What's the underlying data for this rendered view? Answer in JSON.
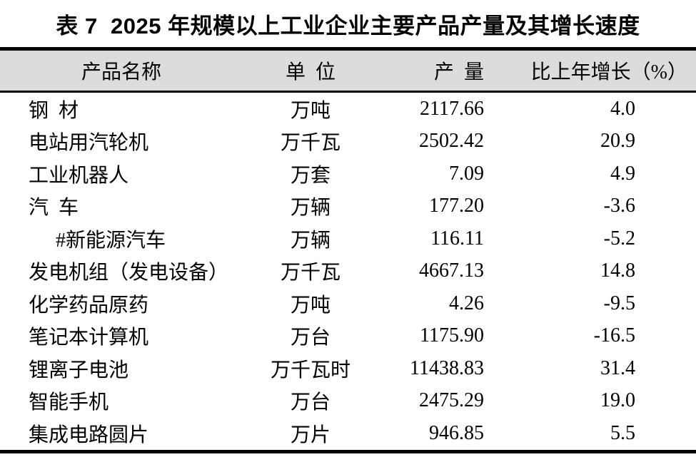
{
  "title": "表 7  2025 年规模以上工业企业主要产品产量及其增长速度",
  "table": {
    "columns": {
      "product": "产品名称",
      "unit": "单  位",
      "output": "产  量",
      "growth": "比上年增长（%）"
    },
    "rows": [
      {
        "product": "钢  材",
        "unit": "万吨",
        "output": "2117.66",
        "growth": "4.0"
      },
      {
        "product": "电站用汽轮机",
        "unit": "万千瓦",
        "output": "2502.42",
        "growth": "20.9"
      },
      {
        "product": "工业机器人",
        "unit": "万套",
        "output": "7.09",
        "growth": "4.9"
      },
      {
        "product": "汽  车",
        "unit": "万辆",
        "output": "177.20",
        "growth": "-3.6"
      },
      {
        "product": "#新能源汽车",
        "unit": "万辆",
        "output": "116.11",
        "growth": "-5.2"
      },
      {
        "product": "发电机组（发电设备）",
        "unit": "万千瓦",
        "output": "4667.13",
        "growth": "14.8"
      },
      {
        "product": "化学药品原药",
        "unit": "万吨",
        "output": "4.26",
        "growth": "-9.5"
      },
      {
        "product": "笔记本计算机",
        "unit": "万台",
        "output": "1175.90",
        "growth": "-16.5"
      },
      {
        "product": "锂离子电池",
        "unit": "万千瓦时",
        "output": "11438.83",
        "growth": "31.4"
      },
      {
        "product": "智能手机",
        "unit": "万台",
        "output": "2475.29",
        "growth": "19.0"
      },
      {
        "product": "集成电路圆片",
        "unit": "万片",
        "output": "946.85",
        "growth": "5.5"
      }
    ]
  },
  "colors": {
    "header_background": "#dcdcdc",
    "border": "#000000",
    "text": "#000000"
  }
}
